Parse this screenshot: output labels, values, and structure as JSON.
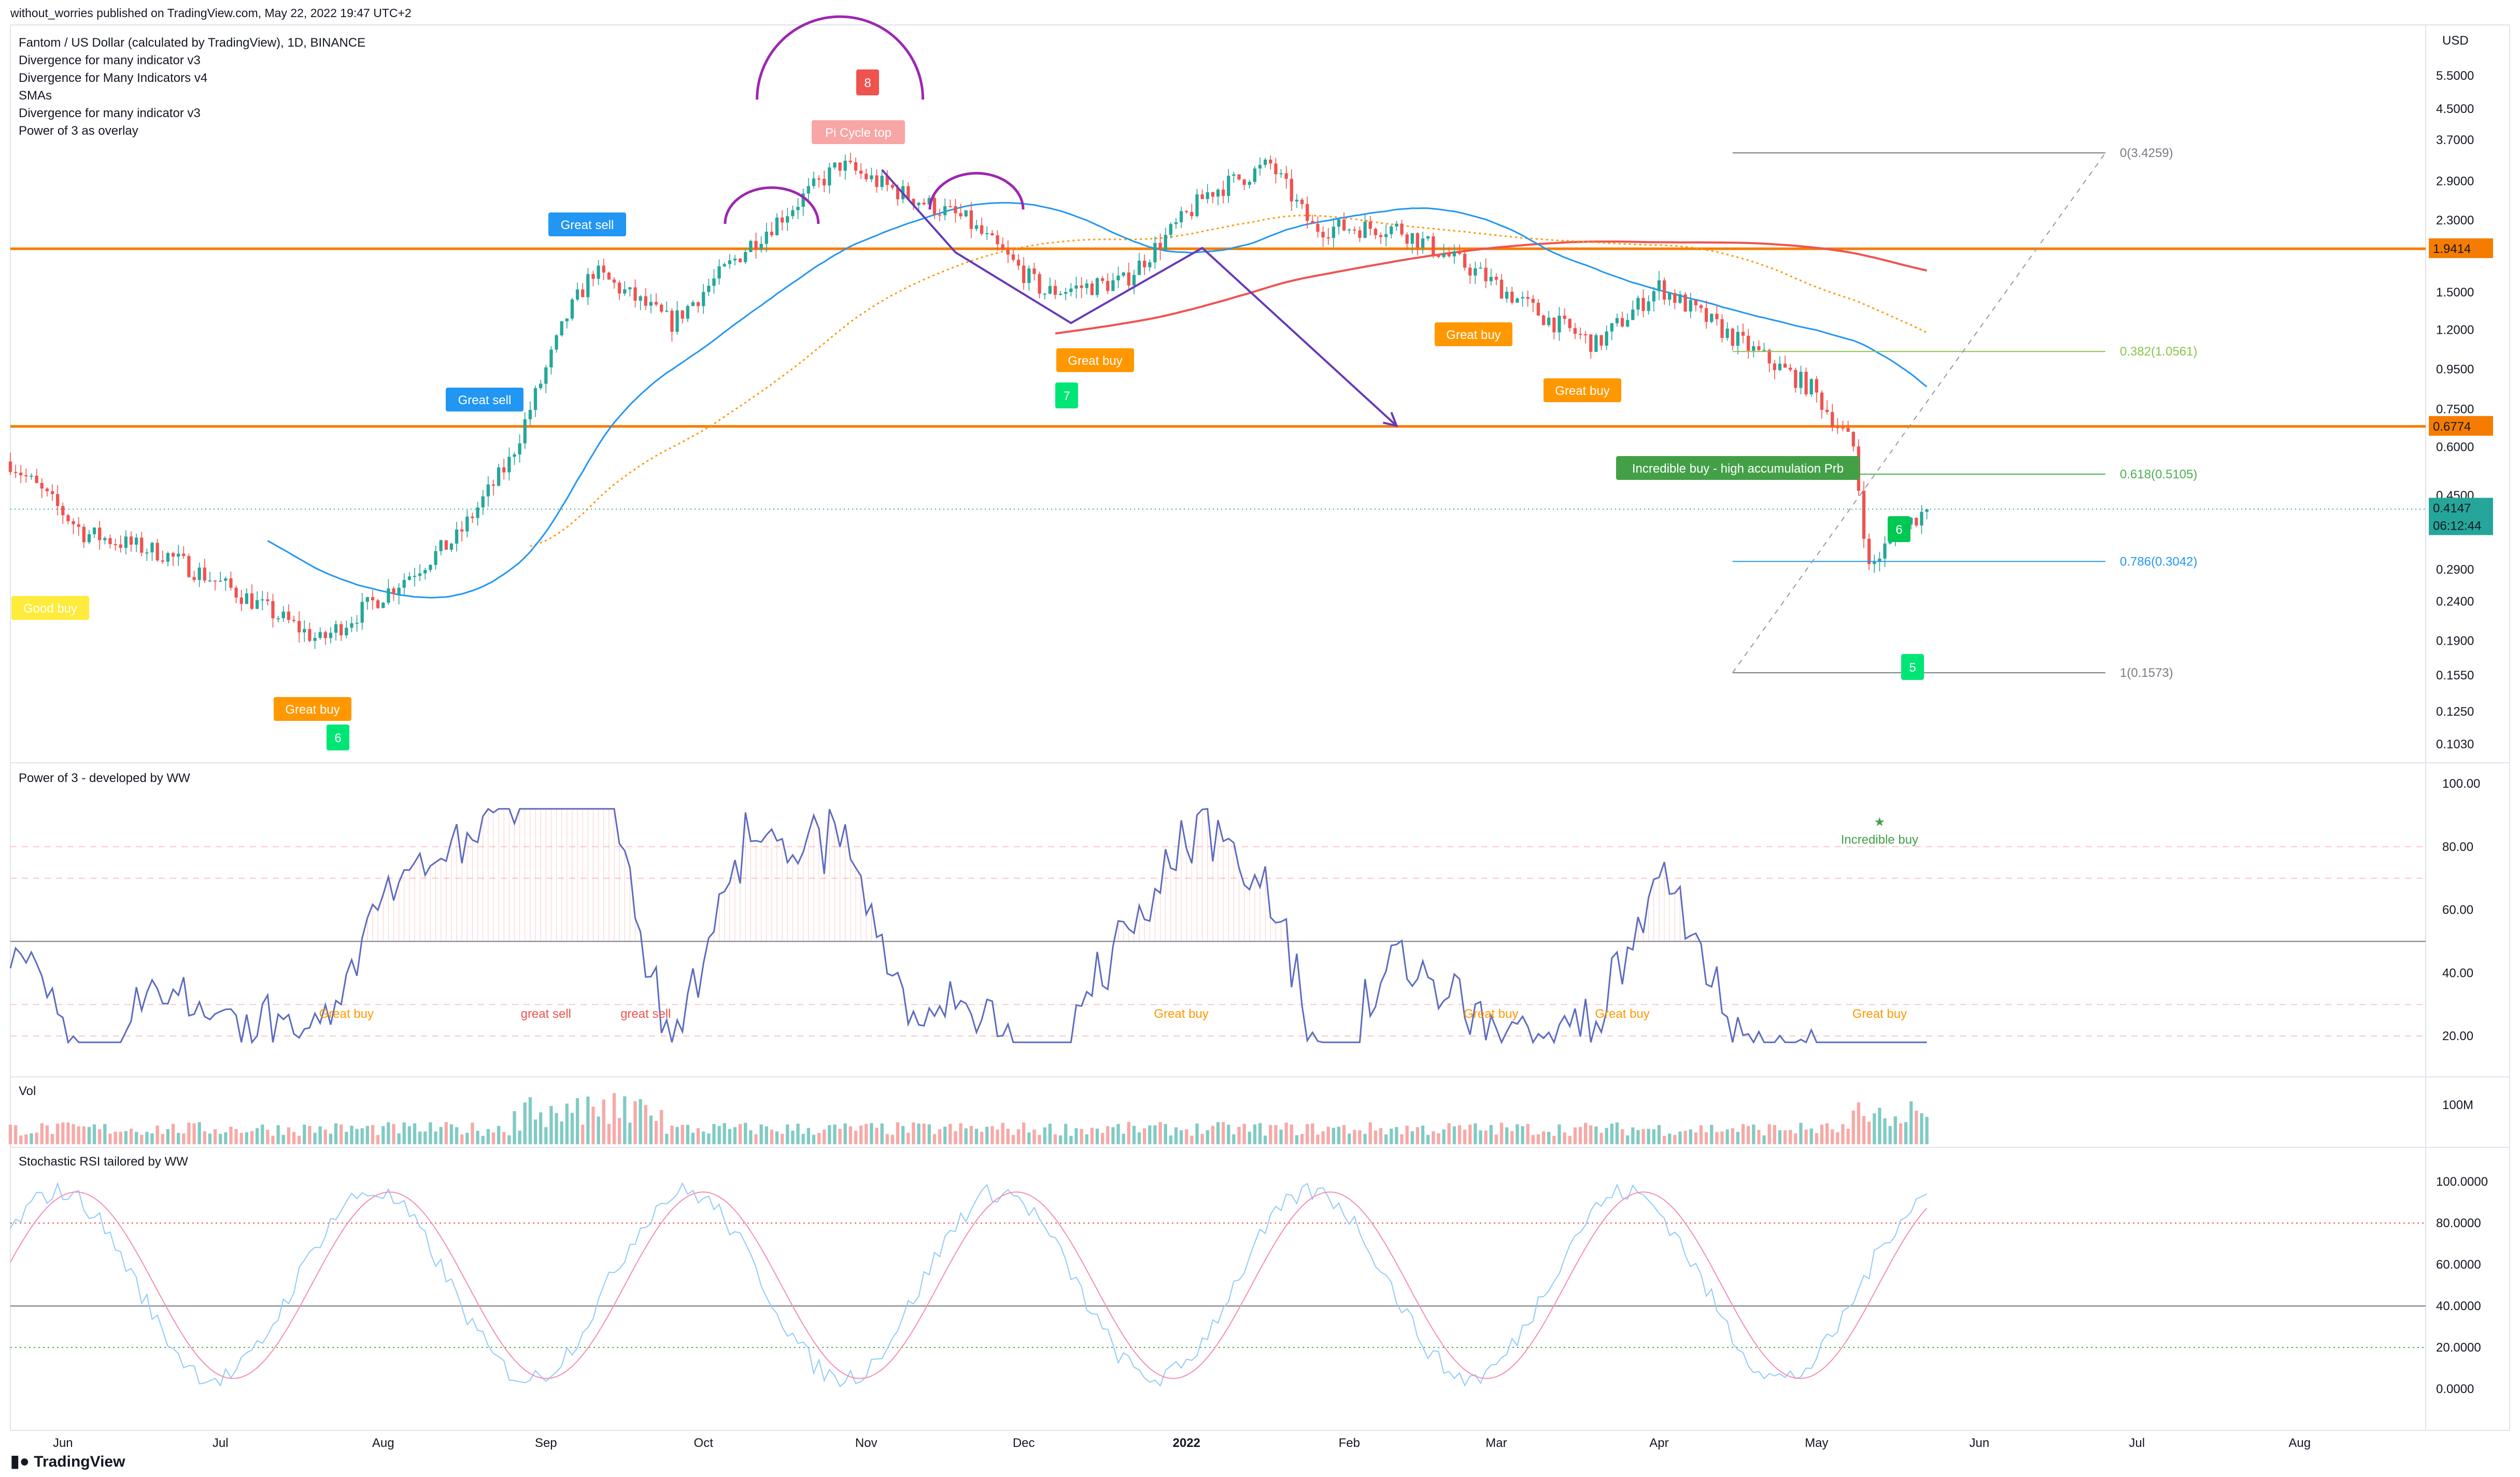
{
  "header": {
    "published": "without_worries published on TradingView.com, May 22, 2022 19:47 UTC+2",
    "symbol": "Fantom / US Dollar (calculated by TradingView), 1D, BINANCE",
    "indicators": [
      "Divergence for many indicator v3",
      "Divergence for Many Indicators v4",
      "SMAs",
      "Divergence for many indicator v3",
      "Power of 3 as overlay"
    ]
  },
  "currency": "USD",
  "price_axis": [
    "5.5000",
    "4.5000",
    "3.7000",
    "2.9000",
    "2.3000",
    "1.9414",
    "1.5000",
    "1.2000",
    "0.9500",
    "0.7500",
    "0.6774",
    "0.6000",
    "0.4500",
    "0.4147",
    "06:12:44",
    "0.2900",
    "0.2400",
    "0.1900",
    "0.1550",
    "0.1250",
    "0.1030"
  ],
  "price_badges": {
    "h1": "1.9414",
    "h2": "0.6774",
    "last": "0.4147",
    "timer": "06:12:44"
  },
  "x_axis": [
    "Jun",
    "Jul",
    "Aug",
    "Sep",
    "Oct",
    "Nov",
    "Dec",
    "2022",
    "Feb",
    "Mar",
    "Apr",
    "May",
    "Jun",
    "Jul",
    "Aug"
  ],
  "fib": {
    "f0": "0(3.4259)",
    "f382": "0.382(1.0561)",
    "f618": "0.618(0.5105)",
    "f786": "0.786(0.3042)",
    "f1": "1(0.1573)"
  },
  "labels": {
    "good_buy": "Good buy",
    "great_buy": "Great buy",
    "great_sell": "Great sell",
    "pi_top": "Pi Cycle top",
    "incredible_buy_hi": "Incredible buy - high accumulation Prb",
    "n8": "8",
    "n7": "7",
    "n6a": "6",
    "n6b": "6",
    "n5": "5"
  },
  "panes": {
    "power3": {
      "title": "Power of 3 - developed by WW",
      "axis": [
        "100.00",
        "80.00",
        "60.00",
        "40.00",
        "20.00"
      ],
      "labels": [
        "Great buy",
        "great sell",
        "great sell",
        "Great buy",
        "Great buy",
        "Great buy",
        "Great buy",
        "Incredible buy"
      ]
    },
    "vol": {
      "title": "Vol",
      "axis": [
        "100M"
      ]
    },
    "stoch": {
      "title": "Stochastic RSI tailored by WW",
      "axis": [
        "100.0000",
        "80.0000",
        "60.0000",
        "40.0000",
        "20.0000",
        "0.0000"
      ]
    }
  },
  "footer": {
    "brand": "TradingView"
  },
  "colors": {
    "up": "#26a69a",
    "down": "#ef5350",
    "orange": "#f57c00",
    "sma50": "#2196f3",
    "sma200": "#ef5350",
    "dotted": "#ff9800",
    "purple": "#9c27b0",
    "indigo": "#673ab7"
  },
  "chart_data": [
    {
      "type": "candlestick",
      "title": "Fantom / US Dollar (calculated by TradingView), 1D, BINANCE",
      "scale": "log",
      "ylim": [
        0.1,
        6.0
      ],
      "x_range": [
        "2021-05-22",
        "2022-08-25"
      ],
      "price_path": [
        [
          "2021-05-22",
          0.55
        ],
        [
          "2021-06-05",
          0.36
        ],
        [
          "2021-06-20",
          0.32
        ],
        [
          "2021-07-05",
          0.25
        ],
        [
          "2021-07-20",
          0.19
        ],
        [
          "2021-08-01",
          0.25
        ],
        [
          "2021-08-15",
          0.35
        ],
        [
          "2021-08-25",
          0.55
        ],
        [
          "2021-09-05",
          1.3
        ],
        [
          "2021-09-10",
          1.7
        ],
        [
          "2021-09-25",
          1.25
        ],
        [
          "2021-10-10",
          2.0
        ],
        [
          "2021-10-27",
          3.2
        ],
        [
          "2021-11-05",
          2.8
        ],
        [
          "2021-11-20",
          2.3
        ],
        [
          "2021-12-05",
          1.5
        ],
        [
          "2021-12-20",
          1.6
        ],
        [
          "2022-01-05",
          2.7
        ],
        [
          "2022-01-17",
          3.2
        ],
        [
          "2022-01-25",
          2.2
        ],
        [
          "2022-02-10",
          2.2
        ],
        [
          "2022-02-25",
          1.7
        ],
        [
          "2022-03-10",
          1.3
        ],
        [
          "2022-03-20",
          1.1
        ],
        [
          "2022-04-01",
          1.55
        ],
        [
          "2022-04-15",
          1.15
        ],
        [
          "2022-04-30",
          0.85
        ],
        [
          "2022-05-08",
          0.6
        ],
        [
          "2022-05-11",
          0.29
        ],
        [
          "2022-05-16",
          0.36
        ],
        [
          "2022-05-22",
          0.4147
        ]
      ],
      "horizontal_levels": [
        1.9414,
        0.6774
      ],
      "fib_levels": [
        {
          "level": 0,
          "price": 3.4259
        },
        {
          "level": 0.382,
          "price": 1.0561
        },
        {
          "level": 0.618,
          "price": 0.5105
        },
        {
          "level": 0.786,
          "price": 0.3042
        },
        {
          "level": 1,
          "price": 0.1573
        }
      ]
    },
    {
      "type": "line",
      "title": "Power of 3 - developed by WW",
      "ylim": [
        10,
        100
      ],
      "reference_lines": [
        80,
        70,
        50,
        30,
        20
      ]
    },
    {
      "type": "bar",
      "title": "Vol",
      "ylim": [
        0,
        100000000
      ]
    },
    {
      "type": "line",
      "title": "Stochastic RSI tailored by WW",
      "ylim": [
        -5,
        110
      ],
      "reference_lines": [
        80,
        40,
        20
      ]
    }
  ]
}
